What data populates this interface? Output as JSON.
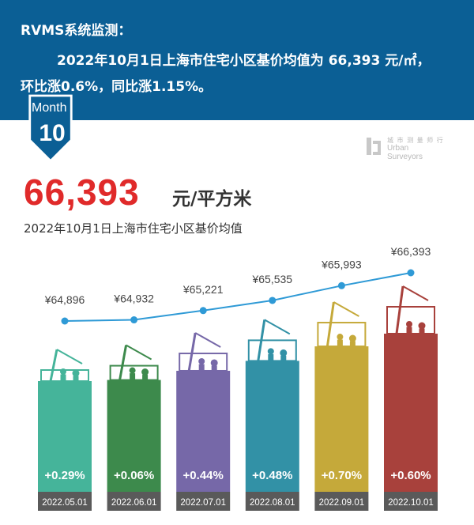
{
  "header": {
    "line1": "RVMS系统监测：",
    "line2": "2022年10月1日上海市住宅小区基价均值为  66,393 元/㎡，",
    "line3": "环比涨0.6%，同比涨1.15%。"
  },
  "badge": {
    "label": "Month",
    "number": "10"
  },
  "logo": {
    "line1": "城 市 测 量 师 行",
    "line2": "Urban",
    "line3": "Surveyors"
  },
  "headline": {
    "value": "66,393",
    "unit": "元/平方米",
    "subtitle": "2022年10月1日上海市住宅小区基价均值"
  },
  "colors": {
    "banner": "#0b5f95",
    "line": "#2f9ad6",
    "date_bar": "#5a5a5a",
    "bars": [
      "#45b49a",
      "#3d8a4c",
      "#7668a8",
      "#3291a6",
      "#c5a93a",
      "#a8413c"
    ]
  },
  "chart_data": {
    "type": "bar",
    "categories": [
      "2022.05.01",
      "2022.06.01",
      "2022.07.01",
      "2022.08.01",
      "2022.09.01",
      "2022.10.01"
    ],
    "values": [
      64896,
      64932,
      65221,
      65535,
      65993,
      66393
    ],
    "value_labels": [
      "¥64,896",
      "¥64,932",
      "¥65,221",
      "¥65,535",
      "¥65,993",
      "¥66,393"
    ],
    "change_labels": [
      "+0.29%",
      "+0.06%",
      "+0.44%",
      "+0.48%",
      "+0.70%",
      "+0.60%"
    ],
    "overlay": "line",
    "title": "",
    "xlabel": "",
    "ylabel": "",
    "legend": "none",
    "grid": false
  }
}
